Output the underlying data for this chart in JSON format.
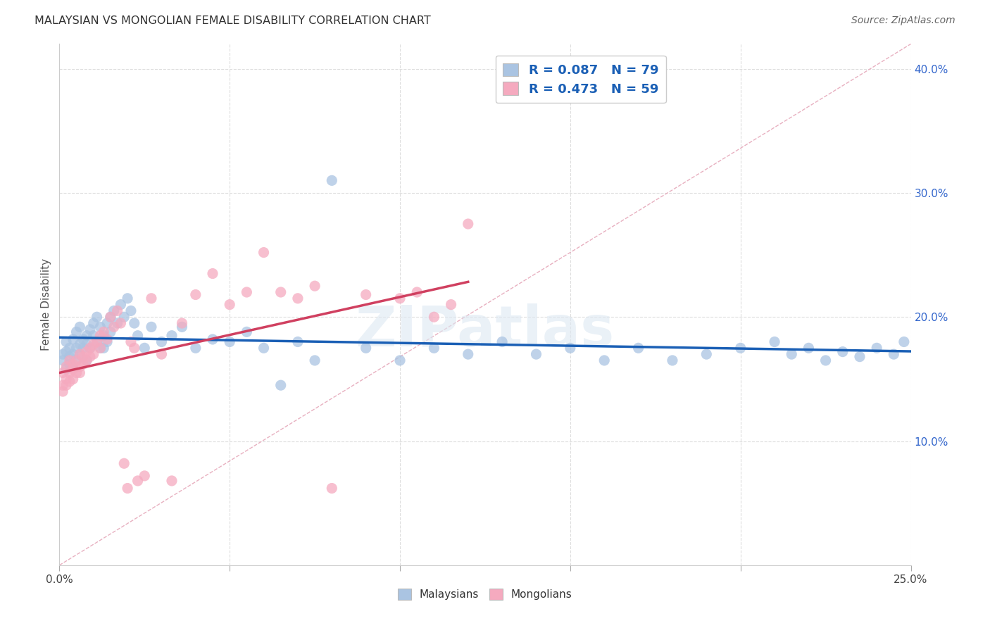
{
  "title": "MALAYSIAN VS MONGOLIAN FEMALE DISABILITY CORRELATION CHART",
  "source": "Source: ZipAtlas.com",
  "ylabel": "Female Disability",
  "watermark": "ZIPatlas",
  "xlim": [
    0.0,
    0.25
  ],
  "ylim": [
    0.0,
    0.42
  ],
  "legend_label1": "R = 0.087   N = 79",
  "legend_label2": "R = 0.473   N = 59",
  "malaysian_color": "#aac4e2",
  "mongolian_color": "#f5aabf",
  "trend_malaysian_color": "#1a5fb5",
  "trend_mongolian_color": "#d04060",
  "diagonal_color": "#ddbbcc",
  "background_color": "#ffffff",
  "grid_color": "#cccccc",
  "mal_x": [
    0.001,
    0.001,
    0.002,
    0.002,
    0.002,
    0.003,
    0.003,
    0.003,
    0.004,
    0.004,
    0.004,
    0.005,
    0.005,
    0.005,
    0.006,
    0.006,
    0.006,
    0.007,
    0.007,
    0.008,
    0.008,
    0.008,
    0.009,
    0.009,
    0.01,
    0.01,
    0.011,
    0.011,
    0.012,
    0.012,
    0.013,
    0.013,
    0.014,
    0.014,
    0.015,
    0.015,
    0.016,
    0.017,
    0.018,
    0.019,
    0.02,
    0.021,
    0.022,
    0.023,
    0.025,
    0.027,
    0.03,
    0.033,
    0.036,
    0.04,
    0.045,
    0.05,
    0.055,
    0.06,
    0.065,
    0.07,
    0.075,
    0.08,
    0.09,
    0.1,
    0.11,
    0.12,
    0.13,
    0.14,
    0.15,
    0.16,
    0.17,
    0.18,
    0.19,
    0.2,
    0.21,
    0.215,
    0.22,
    0.225,
    0.23,
    0.235,
    0.24,
    0.245,
    0.248
  ],
  "mal_y": [
    0.17,
    0.165,
    0.172,
    0.158,
    0.18,
    0.162,
    0.175,
    0.168,
    0.17,
    0.182,
    0.16,
    0.175,
    0.188,
    0.165,
    0.178,
    0.192,
    0.17,
    0.182,
    0.175,
    0.185,
    0.178,
    0.165,
    0.19,
    0.175,
    0.185,
    0.195,
    0.18,
    0.2,
    0.175,
    0.192,
    0.185,
    0.175,
    0.195,
    0.18,
    0.2,
    0.188,
    0.205,
    0.195,
    0.21,
    0.2,
    0.215,
    0.205,
    0.195,
    0.185,
    0.175,
    0.192,
    0.18,
    0.185,
    0.192,
    0.175,
    0.182,
    0.18,
    0.188,
    0.175,
    0.145,
    0.18,
    0.165,
    0.31,
    0.175,
    0.165,
    0.175,
    0.17,
    0.18,
    0.17,
    0.175,
    0.165,
    0.175,
    0.165,
    0.17,
    0.175,
    0.18,
    0.17,
    0.175,
    0.165,
    0.172,
    0.168,
    0.175,
    0.17,
    0.18
  ],
  "mon_x": [
    0.001,
    0.001,
    0.001,
    0.002,
    0.002,
    0.002,
    0.003,
    0.003,
    0.003,
    0.004,
    0.004,
    0.004,
    0.005,
    0.005,
    0.006,
    0.006,
    0.006,
    0.007,
    0.007,
    0.008,
    0.008,
    0.009,
    0.009,
    0.01,
    0.01,
    0.011,
    0.012,
    0.012,
    0.013,
    0.014,
    0.015,
    0.016,
    0.017,
    0.018,
    0.019,
    0.02,
    0.021,
    0.022,
    0.023,
    0.025,
    0.027,
    0.03,
    0.033,
    0.036,
    0.04,
    0.045,
    0.05,
    0.055,
    0.06,
    0.065,
    0.07,
    0.075,
    0.08,
    0.09,
    0.1,
    0.105,
    0.11,
    0.115,
    0.12
  ],
  "mon_y": [
    0.155,
    0.145,
    0.14,
    0.16,
    0.15,
    0.145,
    0.155,
    0.148,
    0.165,
    0.15,
    0.162,
    0.158,
    0.165,
    0.155,
    0.17,
    0.16,
    0.155,
    0.168,
    0.162,
    0.172,
    0.165,
    0.175,
    0.168,
    0.178,
    0.17,
    0.18,
    0.185,
    0.175,
    0.188,
    0.182,
    0.2,
    0.192,
    0.205,
    0.195,
    0.082,
    0.062,
    0.18,
    0.175,
    0.068,
    0.072,
    0.215,
    0.17,
    0.068,
    0.195,
    0.218,
    0.235,
    0.21,
    0.22,
    0.252,
    0.22,
    0.215,
    0.225,
    0.062,
    0.218,
    0.215,
    0.22,
    0.2,
    0.21,
    0.275
  ]
}
